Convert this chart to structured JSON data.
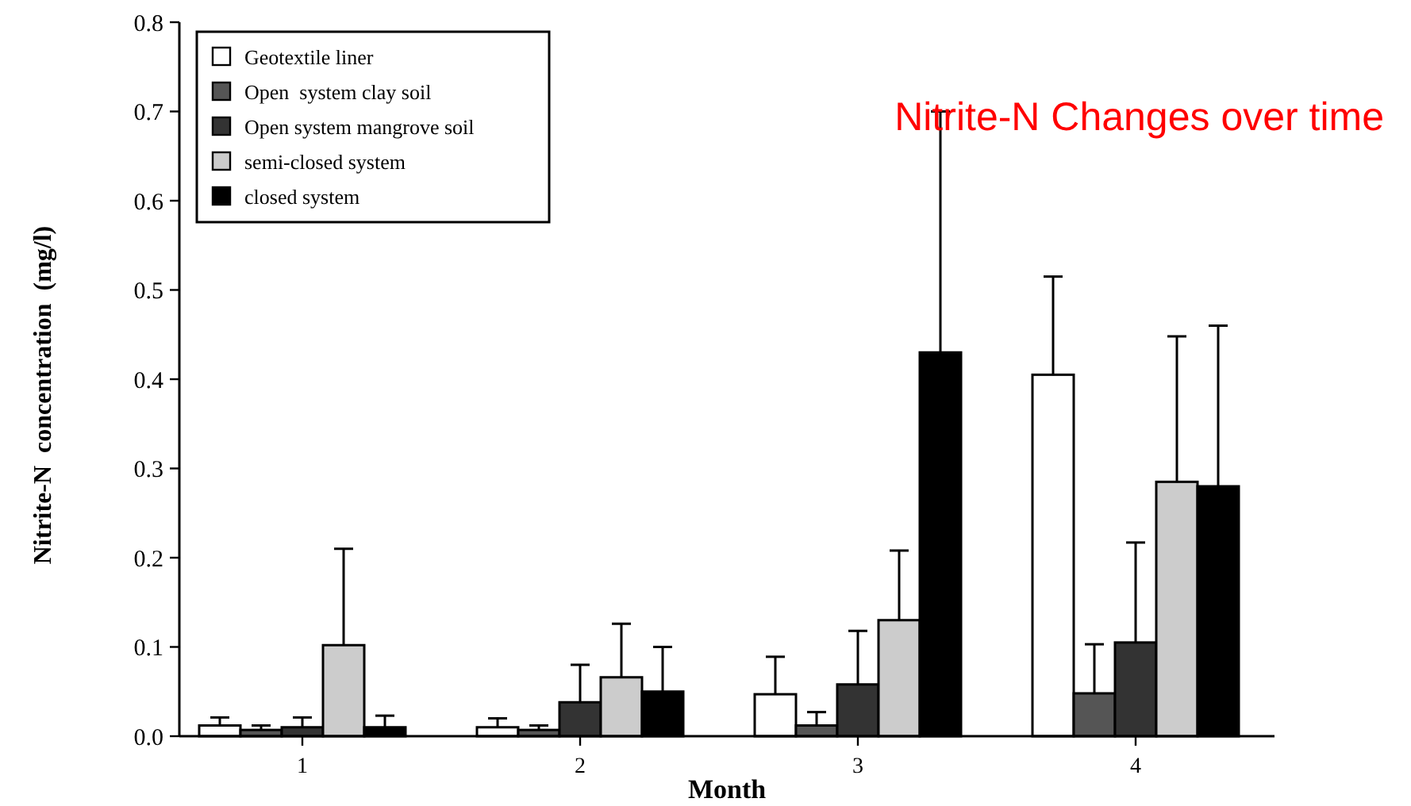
{
  "chart_data": {
    "type": "bar",
    "title": "Nitrite-N Changes over time",
    "xlabel": "Month",
    "ylabel": "Nitrite-N  concentration  (mg/l)",
    "categories": [
      "1",
      "2",
      "3",
      "4"
    ],
    "series": [
      {
        "name": "Geotextile liner",
        "color": "#ffffff",
        "values": [
          0.012,
          0.01,
          0.047,
          0.405
        ],
        "errors": [
          [
            0.012,
            0.021
          ],
          [
            0.01,
            0.02
          ],
          [
            0.047,
            0.089
          ],
          [
            0.405,
            0.515
          ]
        ]
      },
      {
        "name": "Open  system clay soil",
        "color": "#555555",
        "values": [
          0.007,
          0.007,
          0.012,
          0.048
        ],
        "errors": [
          [
            0.007,
            0.012
          ],
          [
            0.007,
            0.012
          ],
          [
            0.012,
            0.027
          ],
          [
            0.048,
            0.103
          ]
        ]
      },
      {
        "name": "Open system mangrove soil",
        "color": "#333333",
        "values": [
          0.01,
          0.038,
          0.058,
          0.105
        ],
        "errors": [
          [
            0.01,
            0.021
          ],
          [
            0.038,
            0.08
          ],
          [
            0.058,
            0.118
          ],
          [
            0.105,
            0.217
          ]
        ]
      },
      {
        "name": "semi-closed system",
        "color": "#cccccc",
        "values": [
          0.102,
          0.066,
          0.13,
          0.285
        ],
        "errors": [
          [
            0.102,
            0.21
          ],
          [
            0.066,
            0.126
          ],
          [
            0.13,
            0.208
          ],
          [
            0.285,
            0.448
          ]
        ]
      },
      {
        "name": "closed system",
        "color": "#000000",
        "values": [
          0.01,
          0.05,
          0.43,
          0.28
        ],
        "errors": [
          [
            0.01,
            0.023
          ],
          [
            0.05,
            0.1
          ],
          [
            0.43,
            0.7
          ],
          [
            0.28,
            0.46
          ]
        ]
      }
    ],
    "ylim": [
      0,
      0.8
    ],
    "yticks": [
      {
        "value": 0,
        "label": "0.0"
      },
      {
        "value": 0.1,
        "label": "0.1"
      },
      {
        "value": 0.2,
        "label": "0.2"
      },
      {
        "value": 0.3,
        "label": "0.3"
      },
      {
        "value": 0.4,
        "label": "0.4"
      },
      {
        "value": 0.5,
        "label": "0.5"
      },
      {
        "value": 0.6,
        "label": "0.6"
      },
      {
        "value": 0.7,
        "label": "0.7"
      },
      {
        "value": 0.8,
        "label": "0.8"
      }
    ],
    "legend": "top left",
    "grid": false
  }
}
